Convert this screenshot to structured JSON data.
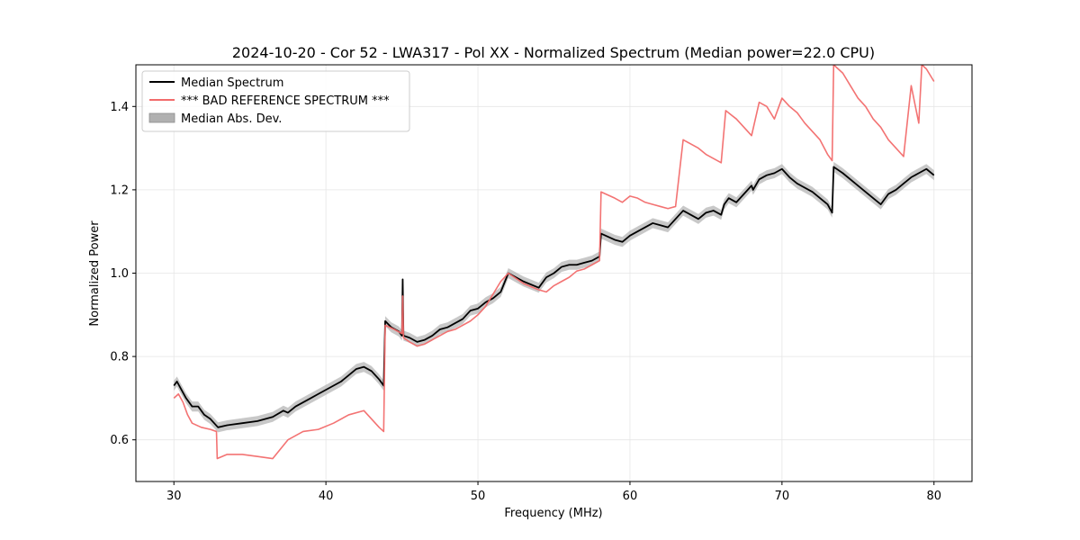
{
  "chart_data": {
    "type": "line",
    "title": "2024-10-20 - Cor 52 - LWA317 - Pol XX - Normalized Spectrum (Median power=22.0 CPU)",
    "xlabel": "Frequency (MHz)",
    "ylabel": "Normalized Power",
    "xlim": [
      27.5,
      82.5
    ],
    "ylim": [
      0.5,
      1.5
    ],
    "xticks": [
      30,
      40,
      50,
      60,
      70,
      80
    ],
    "xtick_labels": [
      "30",
      "40",
      "50",
      "60",
      "70",
      "80"
    ],
    "yticks": [
      0.6,
      0.8,
      1.0,
      1.2,
      1.4
    ],
    "ytick_labels": [
      "0.6",
      "0.8",
      "1.0",
      "1.2",
      "1.4"
    ],
    "grid": true,
    "legend_position": "top-left",
    "legend": [
      "Median Spectrum",
      "*** BAD REFERENCE SPECTRUM ***",
      "Median Abs. Dev."
    ],
    "colors": {
      "median": "#000000",
      "reference": "#f26b6b",
      "band": "#b0b0b0",
      "grid": "#e6e6e6"
    },
    "band_halfwidth": 0.012,
    "series": [
      {
        "name": "Median Spectrum",
        "x": [
          30,
          30.2,
          30.5,
          30.8,
          31.2,
          31.6,
          32,
          32.4,
          32.9,
          33.5,
          34.5,
          35.5,
          36.5,
          37.2,
          37.5,
          38,
          38.5,
          39,
          39.5,
          40,
          40.5,
          41,
          41.5,
          42,
          42.5,
          43,
          43.5,
          43.8,
          43.9,
          44.3,
          44.8,
          45.0,
          45.05,
          45.1,
          45.5,
          46,
          46.5,
          47,
          47.5,
          48,
          48.5,
          49,
          49.5,
          50,
          50.5,
          51,
          51.5,
          52,
          53,
          54,
          54.5,
          55,
          55.5,
          56,
          56.5,
          57,
          57.5,
          58,
          58.1,
          59,
          59.5,
          60,
          60.5,
          61,
          61.5,
          62,
          62.5,
          63,
          63.5,
          64,
          64.5,
          65,
          65.5,
          66,
          66.2,
          66.5,
          67,
          67.5,
          68,
          68.1,
          68.5,
          69,
          69.5,
          70,
          70.5,
          71,
          72,
          73,
          73.3,
          73.4,
          74,
          75,
          76,
          76.5,
          77,
          77.5,
          78,
          78.5,
          79,
          79.5,
          80
        ],
        "values": [
          0.73,
          0.74,
          0.72,
          0.7,
          0.68,
          0.68,
          0.66,
          0.65,
          0.63,
          0.635,
          0.64,
          0.645,
          0.655,
          0.67,
          0.665,
          0.68,
          0.69,
          0.7,
          0.71,
          0.72,
          0.73,
          0.74,
          0.755,
          0.77,
          0.775,
          0.765,
          0.745,
          0.73,
          0.885,
          0.87,
          0.86,
          0.85,
          0.985,
          0.85,
          0.845,
          0.835,
          0.84,
          0.85,
          0.865,
          0.87,
          0.88,
          0.89,
          0.91,
          0.915,
          0.93,
          0.94,
          0.955,
          1.0,
          0.98,
          0.965,
          0.99,
          1.0,
          1.015,
          1.02,
          1.02,
          1.025,
          1.03,
          1.04,
          1.095,
          1.08,
          1.075,
          1.09,
          1.1,
          1.11,
          1.12,
          1.115,
          1.11,
          1.13,
          1.15,
          1.14,
          1.13,
          1.145,
          1.15,
          1.14,
          1.165,
          1.18,
          1.17,
          1.19,
          1.21,
          1.2,
          1.225,
          1.235,
          1.24,
          1.25,
          1.23,
          1.215,
          1.195,
          1.165,
          1.145,
          1.255,
          1.24,
          1.21,
          1.18,
          1.165,
          1.19,
          1.2,
          1.215,
          1.23,
          1.24,
          1.25,
          1.235
        ]
      },
      {
        "name": "*** BAD REFERENCE SPECTRUM ***",
        "x": [
          30,
          30.3,
          30.6,
          30.9,
          31.2,
          31.8,
          32.4,
          32.8,
          32.85,
          33.5,
          34.5,
          35.5,
          36.5,
          37.5,
          38.5,
          39.5,
          40.5,
          41.5,
          42.5,
          43.5,
          43.8,
          43.9,
          44.5,
          45.0,
          45.05,
          45.1,
          45.5,
          46,
          46.5,
          47,
          47.5,
          48,
          48.5,
          49,
          49.5,
          50,
          50.5,
          51,
          51.5,
          52,
          53,
          54,
          54.5,
          55,
          55.5,
          56,
          56.5,
          57,
          57.5,
          58,
          58.1,
          59,
          59.5,
          60,
          60.5,
          61,
          61.5,
          62,
          62.5,
          63,
          63.5,
          64,
          64.5,
          65,
          65.5,
          66,
          66.3,
          67,
          67.5,
          68,
          68.5,
          69,
          69.5,
          70,
          70.5,
          71,
          71.5,
          72,
          72.5,
          73,
          73.3,
          73.4,
          74,
          74.5,
          75,
          75.5,
          76,
          76.5,
          77,
          77.5,
          78,
          78.5,
          79,
          79.2,
          79.5,
          80
        ],
        "values": [
          0.7,
          0.71,
          0.69,
          0.66,
          0.64,
          0.63,
          0.625,
          0.62,
          0.555,
          0.565,
          0.565,
          0.56,
          0.555,
          0.6,
          0.62,
          0.625,
          0.64,
          0.66,
          0.67,
          0.63,
          0.62,
          0.875,
          0.865,
          0.855,
          0.945,
          0.845,
          0.835,
          0.825,
          0.83,
          0.84,
          0.85,
          0.86,
          0.865,
          0.875,
          0.885,
          0.9,
          0.92,
          0.95,
          0.98,
          1.0,
          0.975,
          0.96,
          0.955,
          0.97,
          0.98,
          0.99,
          1.005,
          1.01,
          1.02,
          1.03,
          1.195,
          1.18,
          1.17,
          1.185,
          1.18,
          1.17,
          1.165,
          1.16,
          1.155,
          1.16,
          1.32,
          1.31,
          1.3,
          1.285,
          1.275,
          1.265,
          1.39,
          1.37,
          1.35,
          1.33,
          1.41,
          1.4,
          1.37,
          1.42,
          1.4,
          1.385,
          1.36,
          1.34,
          1.32,
          1.285,
          1.27,
          1.5,
          1.48,
          1.45,
          1.42,
          1.4,
          1.37,
          1.35,
          1.32,
          1.3,
          1.28,
          1.45,
          1.36,
          1.5,
          1.49,
          1.46
        ]
      },
      {
        "name": "Median Abs. Dev.",
        "type": "band",
        "around": "Median Spectrum"
      }
    ]
  }
}
